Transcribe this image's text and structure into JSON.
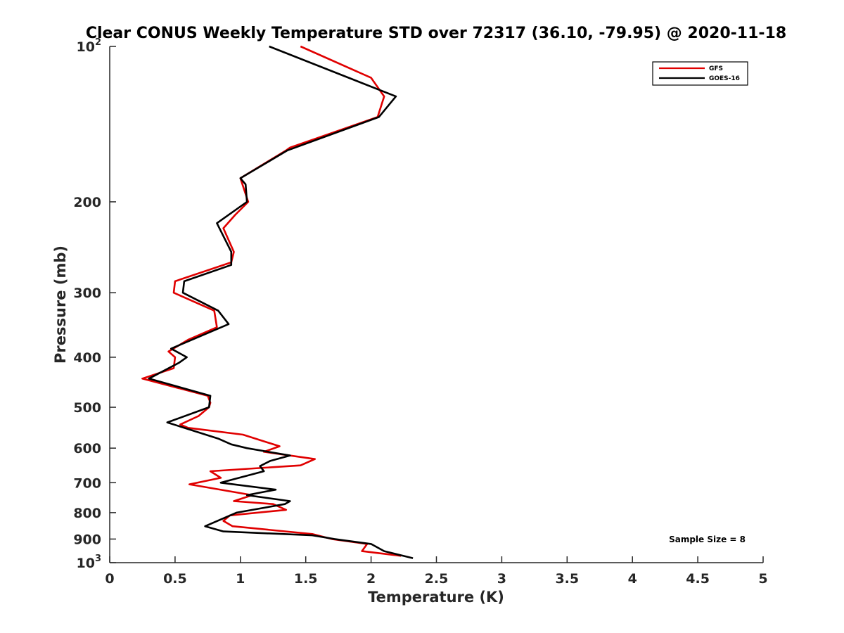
{
  "chart_data": {
    "type": "line",
    "title": "Clear CONUS Weekly Temperature STD over 72317 (36.10, -79.95) @ 2020-11-18",
    "xlabel": "Temperature (K)",
    "ylabel": "Pressure (mb)",
    "xlim": [
      0,
      5
    ],
    "ylim": [
      100,
      1000
    ],
    "y_scale": "log",
    "y_reversed": true,
    "x_ticks": [
      "0",
      "0.5",
      "1",
      "1.5",
      "2",
      "2.5",
      "3",
      "3.5",
      "4",
      "4.5",
      "5"
    ],
    "y_ticks": [
      {
        "value": 100,
        "base": "10",
        "exp": "2"
      },
      {
        "value": 200,
        "label": "200"
      },
      {
        "value": 300,
        "label": "300"
      },
      {
        "value": 400,
        "label": "400"
      },
      {
        "value": 500,
        "label": "500"
      },
      {
        "value": 600,
        "label": "600"
      },
      {
        "value": 700,
        "label": "700"
      },
      {
        "value": 800,
        "label": "800"
      },
      {
        "value": 900,
        "label": "900"
      },
      {
        "value": 1000,
        "base": "10",
        "exp": "3"
      }
    ],
    "grid": false,
    "legend_position": "top-right",
    "annotation": "Sample Size = 8",
    "series": [
      {
        "name": "GFS",
        "color": "#e00000",
        "points": [
          [
            1.46,
            100
          ],
          [
            2.0,
            115
          ],
          [
            2.1,
            125
          ],
          [
            2.05,
            137
          ],
          [
            1.38,
            157
          ],
          [
            1.35,
            159
          ],
          [
            1.0,
            180
          ],
          [
            1.06,
            200
          ],
          [
            0.96,
            212
          ],
          [
            0.87,
            225
          ],
          [
            0.95,
            250
          ],
          [
            0.93,
            262
          ],
          [
            0.5,
            285
          ],
          [
            0.49,
            300
          ],
          [
            0.8,
            325
          ],
          [
            0.82,
            350
          ],
          [
            0.6,
            370
          ],
          [
            0.45,
            390
          ],
          [
            0.5,
            400
          ],
          [
            0.49,
            420
          ],
          [
            0.25,
            440
          ],
          [
            0.75,
            475
          ],
          [
            0.77,
            490
          ],
          [
            0.76,
            500
          ],
          [
            0.68,
            520
          ],
          [
            0.54,
            540
          ],
          [
            0.6,
            548
          ],
          [
            1.02,
            565
          ],
          [
            1.3,
            595
          ],
          [
            1.18,
            610
          ],
          [
            1.57,
            630
          ],
          [
            1.46,
            648
          ],
          [
            0.77,
            665
          ],
          [
            0.85,
            685
          ],
          [
            0.61,
            705
          ],
          [
            1.09,
            740
          ],
          [
            0.95,
            760
          ],
          [
            1.25,
            770
          ],
          [
            1.35,
            790
          ],
          [
            0.92,
            810
          ],
          [
            0.87,
            830
          ],
          [
            0.94,
            850
          ],
          [
            1.55,
            880
          ],
          [
            1.7,
            900
          ],
          [
            1.97,
            920
          ],
          [
            1.93,
            950
          ],
          [
            2.23,
            970
          ]
        ]
      },
      {
        "name": "GOES-16",
        "color": "#000000",
        "points": [
          [
            1.22,
            100
          ],
          [
            2.19,
            125
          ],
          [
            2.06,
            137
          ],
          [
            1.36,
            159
          ],
          [
            1.0,
            180
          ],
          [
            1.04,
            185
          ],
          [
            1.05,
            200
          ],
          [
            0.82,
            220
          ],
          [
            0.93,
            250
          ],
          [
            0.93,
            265
          ],
          [
            0.57,
            285
          ],
          [
            0.56,
            300
          ],
          [
            0.83,
            325
          ],
          [
            0.91,
            345
          ],
          [
            0.47,
            385
          ],
          [
            0.59,
            400
          ],
          [
            0.53,
            410
          ],
          [
            0.3,
            440
          ],
          [
            0.77,
            475
          ],
          [
            0.76,
            500
          ],
          [
            0.44,
            535
          ],
          [
            0.83,
            575
          ],
          [
            0.93,
            590
          ],
          [
            1.05,
            600
          ],
          [
            1.38,
            620
          ],
          [
            1.23,
            635
          ],
          [
            1.15,
            650
          ],
          [
            1.18,
            665
          ],
          [
            0.85,
            700
          ],
          [
            1.27,
            722
          ],
          [
            1.05,
            740
          ],
          [
            1.38,
            760
          ],
          [
            1.34,
            770
          ],
          [
            0.97,
            800
          ],
          [
            0.73,
            850
          ],
          [
            0.87,
            870
          ],
          [
            1.55,
            885
          ],
          [
            1.72,
            900
          ],
          [
            2.0,
            920
          ],
          [
            2.1,
            950
          ],
          [
            2.32,
            980
          ]
        ]
      }
    ]
  }
}
